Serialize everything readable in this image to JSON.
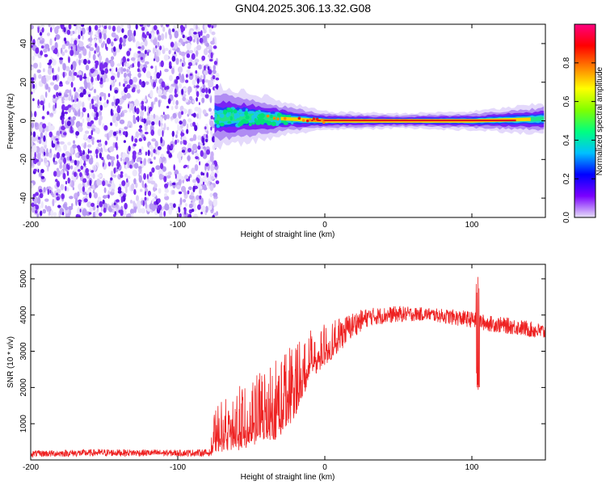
{
  "title": "GN04.2025.306.13.32.G08",
  "colors": {
    "snr_line": "#ee2222",
    "noise_purple": "#7a2cf0",
    "noise_light": "#c9aef6",
    "signal_red": "#e31a1c",
    "signal_green": "#00e07a",
    "signal_cyan": "#19c8e6"
  },
  "chart_data": [
    {
      "type": "heatmap",
      "title": "GN04.2025.306.13.32.G08",
      "xlabel": "Height of straight line (km)",
      "ylabel": "Frequency (Hz)",
      "xlim": [
        -200,
        150
      ],
      "ylim": [
        -50,
        50
      ],
      "x_ticks": [
        -200,
        -100,
        0,
        100
      ],
      "x_tick_labels": [
        "-200",
        "-100",
        "0",
        "100"
      ],
      "y_ticks": [
        -40,
        -20,
        0,
        20,
        40
      ],
      "y_tick_labels": [
        "-40",
        "-20",
        "0",
        "20",
        "40"
      ],
      "noise_region_x": [
        -200,
        -73
      ],
      "signal_start_x": -75,
      "colorbar": {
        "label": "Normalized spectral amplitude",
        "range": [
          0,
          1
        ],
        "ticks": [
          0.0,
          0.2,
          0.4,
          0.6,
          0.8
        ],
        "tick_labels": [
          "0.0",
          "0.2",
          "0.4",
          "0.6",
          "0.8"
        ],
        "colormap": [
          "#e6e0f8",
          "#7a00ff",
          "#0000ff",
          "#00c0ff",
          "#00ff80",
          "#80ff00",
          "#ffff00",
          "#ff8000",
          "#ff0000",
          "#ff0080"
        ]
      },
      "band": [
        {
          "x": -75,
          "center_hz": 2,
          "half_width_hz": 5,
          "peak_amplitude": 0.45
        },
        {
          "x": -50,
          "center_hz": 2,
          "half_width_hz": 4,
          "peak_amplitude": 0.5
        },
        {
          "x": -25,
          "center_hz": 1,
          "half_width_hz": 2.5,
          "peak_amplitude": 0.75
        },
        {
          "x": 0,
          "center_hz": 0,
          "half_width_hz": 1.5,
          "peak_amplitude": 0.95
        },
        {
          "x": 50,
          "center_hz": 0,
          "half_width_hz": 1.2,
          "peak_amplitude": 1.0
        },
        {
          "x": 100,
          "center_hz": 0,
          "half_width_hz": 1.5,
          "peak_amplitude": 0.9
        },
        {
          "x": 150,
          "center_hz": 1,
          "half_width_hz": 2.5,
          "peak_amplitude": 0.55
        }
      ]
    },
    {
      "type": "line",
      "xlabel": "Height of straight line (km)",
      "ylabel": "SNR (10 * v/v)",
      "xlim": [
        -200,
        150
      ],
      "ylim": [
        0,
        5400
      ],
      "x_ticks": [
        -200,
        -100,
        0,
        100
      ],
      "x_tick_labels": [
        "-200",
        "-100",
        "0",
        "100"
      ],
      "y_ticks": [
        1000,
        2000,
        3000,
        4000,
        5000
      ],
      "y_tick_labels": [
        "1000",
        "2000",
        "3000",
        "4000",
        "5000"
      ],
      "envelope": {
        "x": [
          -200,
          -150,
          -100,
          -78,
          -75,
          -60,
          -45,
          -30,
          -20,
          -10,
          0,
          10,
          20,
          30,
          50,
          70,
          90,
          100,
          110,
          130,
          150
        ],
        "low": [
          80,
          100,
          100,
          100,
          200,
          250,
          400,
          600,
          1200,
          2200,
          2600,
          3000,
          3400,
          3700,
          3800,
          3850,
          3700,
          3650,
          3550,
          3450,
          3300
        ],
        "high": [
          260,
          300,
          280,
          300,
          1500,
          2000,
          2400,
          3000,
          3400,
          3700,
          3750,
          3900,
          4100,
          4200,
          4250,
          4200,
          4150,
          4100,
          4000,
          3900,
          3750
        ]
      },
      "spike": {
        "x": 104,
        "min": 1850,
        "max": 5250
      }
    }
  ]
}
